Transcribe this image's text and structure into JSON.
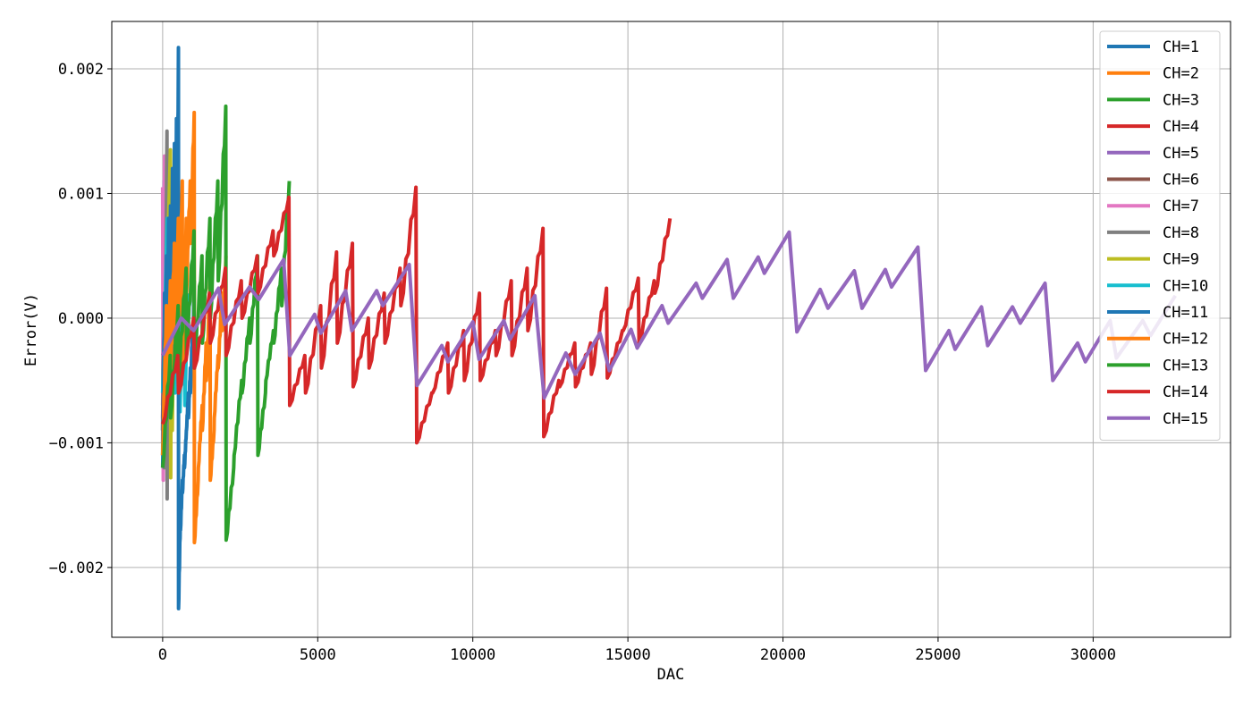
{
  "chart_data": {
    "type": "line",
    "title": "",
    "xlabel": "DAC",
    "ylabel": "Error(V)",
    "xlim": [
      -1640,
      34430
    ],
    "ylim": [
      -0.00256,
      0.00238
    ],
    "xticks": [
      0,
      5000,
      10000,
      15000,
      20000,
      25000,
      30000
    ],
    "xtick_labels": [
      "0",
      "5000",
      "10000",
      "15000",
      "20000",
      "25000",
      "30000"
    ],
    "yticks": [
      0.002,
      0.001,
      0.0,
      -0.001,
      -0.002
    ],
    "ytick_labels": [
      "0.002",
      "0.001",
      "0.000",
      "−0.001",
      "−0.002"
    ],
    "grid": true,
    "legend_position": "top-right",
    "series": [
      {
        "name": "CH=1",
        "color": "#1f77b4",
        "period": 2,
        "points": [
          [
            0,
            -0.0009
          ],
          [
            40,
            0.0005
          ],
          [
            80,
            -0.0004
          ],
          [
            130,
            0.0006
          ]
        ]
      },
      {
        "name": "CH=2",
        "color": "#ff7f0e",
        "period": 4,
        "points": [
          [
            0,
            -0.0007
          ],
          [
            60,
            0.0008
          ],
          [
            100,
            -0.0006
          ],
          [
            170,
            0.0009
          ]
        ]
      },
      {
        "name": "CH=3",
        "color": "#2ca02c",
        "period": 8,
        "points": [
          [
            0,
            -0.0011
          ],
          [
            70,
            0.001
          ],
          [
            120,
            -0.0008
          ],
          [
            210,
            0.0011
          ]
        ]
      },
      {
        "name": "CH=4",
        "color": "#d62728",
        "period": 16,
        "points": [
          [
            0,
            -0.0008
          ],
          [
            60,
            0.0009
          ],
          [
            110,
            -0.0007
          ],
          [
            200,
            0.0008
          ]
        ]
      },
      {
        "name": "CH=5",
        "color": "#9467bd",
        "period": 32,
        "points": [
          [
            0,
            -0.001
          ],
          [
            50,
            0.0011
          ],
          [
            100,
            -0.0009
          ],
          [
            170,
            0.001
          ]
        ]
      },
      {
        "name": "CH=6",
        "color": "#8c564b",
        "period": 64,
        "points": [
          [
            0,
            -0.0009
          ],
          [
            40,
            0.001
          ],
          [
            90,
            -0.0011
          ],
          [
            140,
            0.0009
          ]
        ]
      },
      {
        "name": "CH=7",
        "color": "#e377c2",
        "period": 128,
        "points": [
          [
            0,
            0.00105
          ],
          [
            20,
            -0.0013
          ],
          [
            60,
            0.0013
          ],
          [
            100,
            -0.001
          ],
          [
            130,
            0.0011
          ]
        ]
      },
      {
        "name": "CH=8",
        "color": "#7f7f7f",
        "start": -0.0012,
        "end": 0.0015,
        "points": [
          [
            0,
            -0.0008
          ],
          [
            50,
            -0.0012
          ],
          [
            140,
            0.0015
          ],
          [
            145,
            -0.00145
          ],
          [
            170,
            0.0005
          ]
        ]
      },
      {
        "name": "CH=9",
        "color": "#bcbd22",
        "start": -0.0011,
        "end": 0.00135,
        "points": [
          [
            0,
            -0.0011
          ],
          [
            250,
            0.00135
          ],
          [
            260,
            -0.00128
          ],
          [
            290,
            0.0012
          ],
          [
            310,
            -0.0009
          ],
          [
            380,
            0.0007
          ]
        ]
      },
      {
        "name": "CH=10",
        "color": "#17becf",
        "start": -0.0009,
        "end": 0.0009,
        "points": [
          [
            0,
            -0.0006
          ],
          [
            150,
            0.0008
          ],
          [
            220,
            -0.0007
          ],
          [
            340,
            0.0009
          ],
          [
            400,
            -0.0006
          ],
          [
            500,
            0.0007
          ],
          [
            560,
            -0.00075
          ],
          [
            640,
            0.0004
          ],
          [
            720,
            -0.0007
          ],
          [
            800,
            0.0002
          ]
        ]
      },
      {
        "name": "CH=11",
        "color": "#1f77b4",
        "start": -0.0012,
        "end": 0.00217,
        "segments": 8,
        "reset": 1024,
        "values": [
          [
            -0.0012,
            0.0002
          ],
          [
            -0.001,
            0.0005
          ],
          [
            -0.0008,
            0.0008
          ],
          [
            -0.0006,
            0.0009
          ],
          [
            -0.0004,
            0.0012
          ],
          [
            -0.0003,
            0.0014
          ],
          [
            -0.0002,
            0.0016
          ],
          [
            -0.0001,
            0.00217
          ],
          [
            -0.00233,
            -0.0016
          ],
          [
            -0.0017,
            -0.0013
          ],
          [
            -0.0014,
            -0.0011
          ],
          [
            -0.0012,
            -0.0009
          ],
          [
            -0.0009,
            -0.0006
          ],
          [
            -0.0008,
            -0.0004
          ],
          [
            -0.0006,
            -0.0001
          ],
          [
            -0.0004,
            0.0003
          ]
        ]
      },
      {
        "name": "CH=12",
        "color": "#ff7f0e",
        "start": -0.0011,
        "end": 0.00165,
        "values": [
          [
            -0.0011,
            0.0001
          ],
          [
            -0.0006,
            0.0003
          ],
          [
            -0.0004,
            0.0006
          ],
          [
            -0.0002,
            0.0008
          ],
          [
            0.0,
            0.0011
          ],
          [
            -0.0004,
            0.0008
          ],
          [
            0.0002,
            0.0011
          ],
          [
            0.0006,
            0.00165
          ],
          [
            -0.0018,
            -0.0013
          ],
          [
            -0.0012,
            -0.0007
          ],
          [
            -0.0009,
            -0.0002
          ],
          [
            -0.0005,
            0.0003
          ],
          [
            -0.0013,
            -0.0009
          ],
          [
            -0.0008,
            -0.0003
          ],
          [
            -0.0004,
            0.0002
          ],
          [
            -0.0001,
            0.0005
          ]
        ]
      },
      {
        "name": "CH=13",
        "color": "#2ca02c",
        "start": -0.0012,
        "end": 0.0017,
        "values": [
          [
            -0.0012,
            -0.0003
          ],
          [
            -0.0008,
            0.0001
          ],
          [
            -0.0005,
            0.0004
          ],
          [
            -0.0003,
            0.0007
          ],
          [
            -0.0004,
            0.0005
          ],
          [
            -0.0002,
            0.0008
          ],
          [
            0.0,
            0.0011
          ],
          [
            0.0003,
            0.0017
          ],
          [
            -0.00178,
            -0.0012
          ],
          [
            -0.0011,
            -0.0005
          ],
          [
            -0.0006,
            0.0
          ],
          [
            -0.0002,
            0.0005
          ],
          [
            -0.0011,
            -0.0006
          ],
          [
            -0.0005,
            -0.0001
          ],
          [
            -0.0002,
            0.0004
          ],
          [
            0.0001,
            0.0011
          ]
        ]
      },
      {
        "name": "CH=14",
        "color": "#d62728",
        "start": -0.00085,
        "end": 0.0008,
        "values": [
          [
            -0.00085,
            -0.0003
          ],
          [
            -0.0006,
            0.0
          ],
          [
            -0.0004,
            0.0002
          ],
          [
            -0.0002,
            0.0004
          ],
          [
            -0.0003,
            0.0003
          ],
          [
            0.0,
            0.0005
          ],
          [
            0.0002,
            0.0007
          ],
          [
            0.0005,
            0.00097
          ],
          [
            -0.0007,
            -0.0003
          ],
          [
            -0.0006,
            0.0001
          ],
          [
            -0.0004,
            0.00053
          ],
          [
            -0.0002,
            0.0006
          ],
          [
            -0.00055,
            0.0
          ],
          [
            -0.0004,
            0.0002
          ],
          [
            -0.0002,
            0.0004
          ],
          [
            0.0001,
            0.00105
          ],
          [
            -0.001,
            -0.0006
          ],
          [
            -0.0006,
            -0.0002
          ],
          [
            -0.0006,
            -0.0001
          ],
          [
            -0.0005,
            0.0002
          ],
          [
            -0.0005,
            -0.0001
          ],
          [
            -0.0003,
            0.0003
          ],
          [
            -0.0003,
            0.0004
          ],
          [
            -0.0001,
            0.00072
          ],
          [
            -0.00095,
            -0.0005
          ],
          [
            -0.00055,
            -0.0002
          ],
          [
            -0.00055,
            -0.0002
          ],
          [
            -0.00045,
            0.00024
          ],
          [
            -0.00048,
            -0.0001
          ],
          [
            -0.0001,
            0.00032
          ],
          [
            -0.0002,
            0.0003
          ],
          [
            0.0002,
            0.0008
          ]
        ]
      },
      {
        "name": "CH=15",
        "color": "#9467bd",
        "points": [
          [
            0,
            -0.0003
          ],
          [
            600,
            0.0
          ],
          [
            1000,
            -0.0001
          ],
          [
            1800,
            0.00024
          ],
          [
            2000,
            -5e-05
          ],
          [
            2800,
            0.00025
          ],
          [
            3100,
            0.00015
          ],
          [
            3900,
            0.00047
          ],
          [
            4100,
            -0.0003
          ],
          [
            4900,
            3e-05
          ],
          [
            5100,
            -0.00012
          ],
          [
            5900,
            0.00022
          ],
          [
            6100,
            -0.0001
          ],
          [
            6900,
            0.00022
          ],
          [
            7100,
            0.0001
          ],
          [
            7950,
            0.00043
          ],
          [
            8200,
            -0.00054
          ],
          [
            9000,
            -0.00022
          ],
          [
            9200,
            -0.00035
          ],
          [
            10000,
            -3e-05
          ],
          [
            10200,
            -0.00033
          ],
          [
            11000,
            -2e-05
          ],
          [
            11200,
            -0.00017
          ],
          [
            12000,
            0.00018
          ],
          [
            12300,
            -0.00064
          ],
          [
            13000,
            -0.00028
          ],
          [
            13300,
            -0.00045
          ],
          [
            14100,
            -0.00012
          ],
          [
            14400,
            -0.00042
          ],
          [
            15100,
            -9e-05
          ],
          [
            15300,
            -0.00024
          ],
          [
            16100,
            0.0001
          ],
          [
            16300,
            -4e-05
          ],
          [
            17200,
            0.00028
          ],
          [
            17400,
            0.00016
          ],
          [
            18200,
            0.00047
          ],
          [
            18400,
            0.00016
          ],
          [
            19200,
            0.00049
          ],
          [
            19400,
            0.00036
          ],
          [
            20200,
            0.00069
          ],
          [
            20450,
            -0.00011
          ],
          [
            21200,
            0.00023
          ],
          [
            21450,
            8e-05
          ],
          [
            22300,
            0.00038
          ],
          [
            22550,
            8e-05
          ],
          [
            23300,
            0.00039
          ],
          [
            23500,
            0.00025
          ],
          [
            24350,
            0.00057
          ],
          [
            24600,
            -0.00042
          ],
          [
            25350,
            -0.0001
          ],
          [
            25550,
            -0.00025
          ],
          [
            26400,
            9e-05
          ],
          [
            26600,
            -0.00022
          ],
          [
            27400,
            9e-05
          ],
          [
            27650,
            -4e-05
          ],
          [
            28450,
            0.00028
          ],
          [
            28700,
            -0.0005
          ],
          [
            29500,
            -0.0002
          ],
          [
            29750,
            -0.00035
          ],
          [
            30550,
            -2e-05
          ],
          [
            30750,
            -0.00032
          ],
          [
            31600,
            -2e-05
          ],
          [
            31850,
            -0.00014
          ],
          [
            32650,
            0.00018
          ]
        ]
      }
    ]
  }
}
